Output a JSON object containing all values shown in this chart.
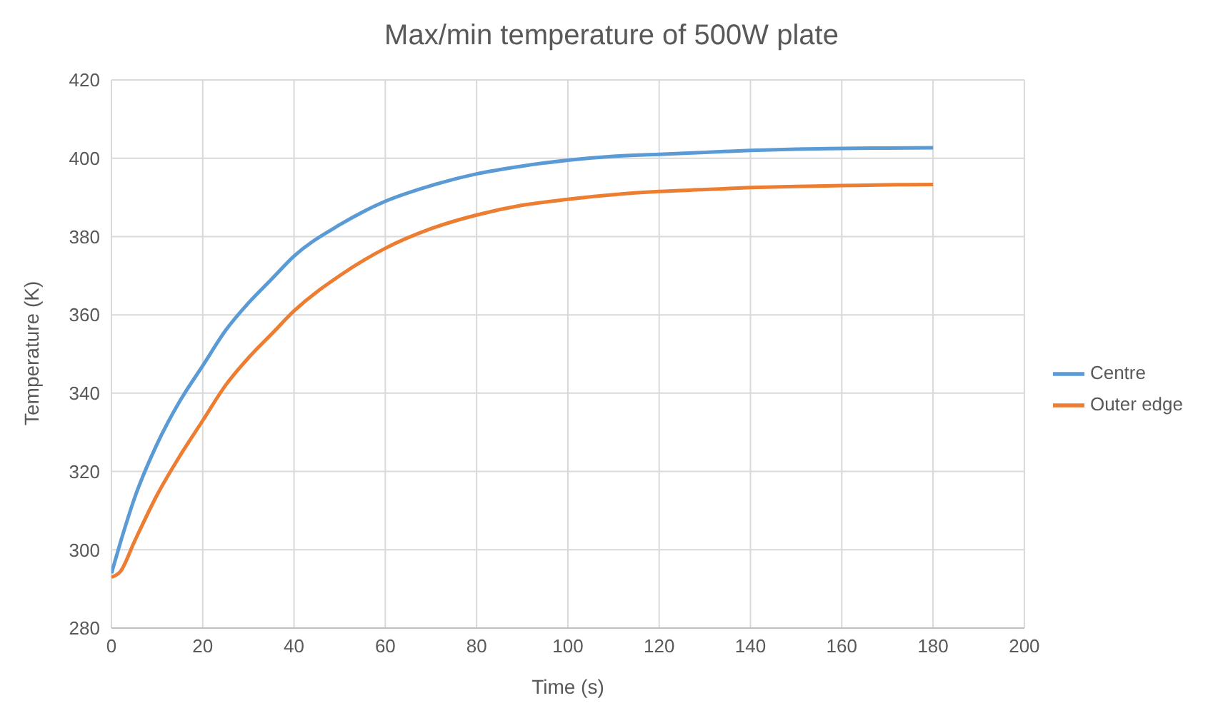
{
  "chart_data": {
    "type": "line",
    "title": "Max/min temperature of 500W plate",
    "xlabel": "Time (s)",
    "ylabel": "Temperature (K)",
    "x": [
      0,
      2,
      5,
      10,
      15,
      20,
      25,
      30,
      35,
      40,
      50,
      60,
      70,
      80,
      90,
      100,
      110,
      120,
      130,
      140,
      150,
      160,
      170,
      180
    ],
    "series": [
      {
        "name": "Centre",
        "color": "#5b9bd5",
        "values": [
          294,
          302,
          313,
          327,
          338,
          347,
          356,
          363,
          369,
          375,
          383,
          389,
          393,
          396,
          398,
          399.5,
          400.5,
          401,
          401.5,
          402,
          402.3,
          402.5,
          402.6,
          402.7
        ]
      },
      {
        "name": "Outer edge",
        "color": "#ed7d31",
        "values": [
          293,
          294.5,
          302,
          314,
          324,
          333,
          342,
          349,
          355,
          361,
          370,
          377,
          382,
          385.5,
          388,
          389.5,
          390.7,
          391.5,
          392,
          392.5,
          392.8,
          393,
          393.2,
          393.3
        ]
      }
    ],
    "xlim": [
      0,
      200
    ],
    "xticks": [
      0,
      20,
      40,
      60,
      80,
      100,
      120,
      140,
      160,
      180,
      200
    ],
    "ylim": [
      280,
      420
    ],
    "yticks": [
      280,
      300,
      320,
      340,
      360,
      380,
      400,
      420
    ],
    "grid": true,
    "legend": "right",
    "marker": "none",
    "line_style": "solid"
  }
}
